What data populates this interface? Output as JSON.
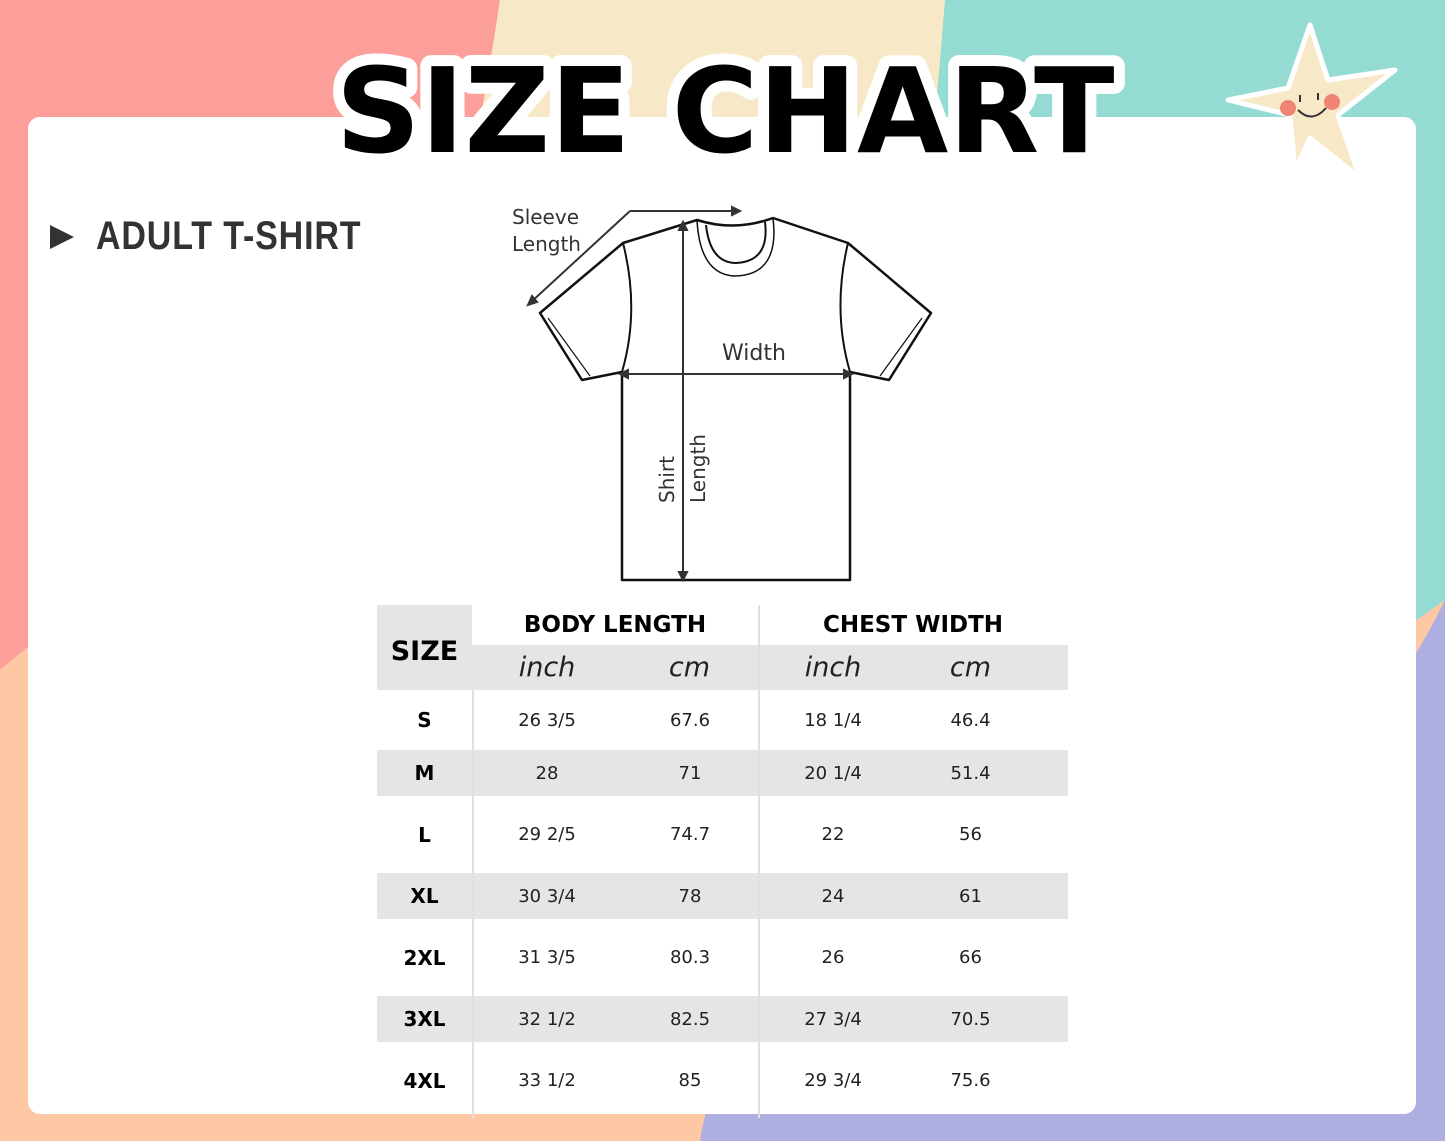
{
  "title": "SIZE CHART",
  "section_label": "ADULT T-SHIRT",
  "diagram": {
    "sleeve_label_1": "Sleeve",
    "sleeve_label_2": "Length",
    "width_label": "Width",
    "shirt_label_1": "Shirt",
    "shirt_label_2": "Length"
  },
  "table": {
    "size_header": "SIZE",
    "groups": [
      "BODY LENGTH",
      "CHEST WIDTH"
    ],
    "units": [
      "inch",
      "cm",
      "inch",
      "cm"
    ],
    "rows": [
      {
        "size": "S",
        "values": [
          "26 3/5",
          "67.6",
          "18 1/4",
          "46.4"
        ]
      },
      {
        "size": "M",
        "values": [
          "28",
          "71",
          "20 1/4",
          "51.4"
        ]
      },
      {
        "size": "L",
        "values": [
          "29 2/5",
          "74.7",
          "22",
          "56"
        ]
      },
      {
        "size": "XL",
        "values": [
          "30 3/4",
          "78",
          "24",
          "61"
        ]
      },
      {
        "size": "2XL",
        "values": [
          "31 3/5",
          "80.3",
          "26",
          "66"
        ]
      },
      {
        "size": "3XL",
        "values": [
          "32 1/2",
          "82.5",
          "27 3/4",
          "70.5"
        ]
      },
      {
        "size": "4XL",
        "values": [
          "33 1/2",
          "85",
          "29 3/4",
          "75.6"
        ]
      }
    ]
  },
  "colors": {
    "pink": "#fc9f9b",
    "cream": "#f7e9c8",
    "teal": "#94dbd4",
    "peach": "#fec8a4",
    "lavender": "#aeaee0",
    "stripe": "#e5e5e5"
  },
  "decorations": [
    "star-mascot-icon"
  ]
}
